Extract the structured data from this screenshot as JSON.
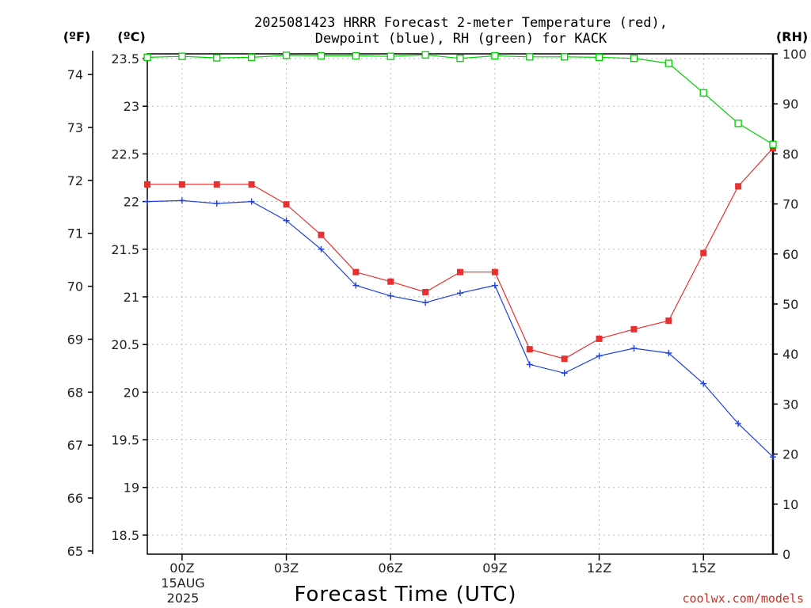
{
  "chart_data": {
    "type": "line",
    "title_line1": "2025081423 HRRR Forecast 2-meter Temperature (red),",
    "title_line2": "Dewpoint (blue), RH (green) for KACK",
    "xlabel": "Forecast Time (UTC)",
    "credit": "coolwx.com/models",
    "units": {
      "fahrenheit": "(ºF)",
      "celsius": "(ºC)",
      "rh": "(RH)"
    },
    "date_label": [
      "15AUG",
      "2025"
    ],
    "x_range_hours": [
      -1,
      17
    ],
    "x_ticks": [
      {
        "hour": 0,
        "label": "00Z"
      },
      {
        "hour": 3,
        "label": "03Z"
      },
      {
        "hour": 6,
        "label": "06Z"
      },
      {
        "hour": 9,
        "label": "09Z"
      },
      {
        "hour": 12,
        "label": "12Z"
      },
      {
        "hour": 15,
        "label": "15Z"
      }
    ],
    "y_celsius_range": [
      18.3,
      23.55
    ],
    "y_celsius_ticks": [
      "18.5",
      "19",
      "19.5",
      "20",
      "20.5",
      "21",
      "21.5",
      "22",
      "22.5",
      "23",
      "23.5"
    ],
    "y_fahrenheit_ticks": [
      "65",
      "66",
      "67",
      "68",
      "69",
      "70",
      "71",
      "72",
      "73",
      "74"
    ],
    "y_rh_range": [
      0,
      100
    ],
    "y_rh_ticks": [
      "0",
      "10",
      "20",
      "30",
      "40",
      "50",
      "60",
      "70",
      "80",
      "90",
      "100"
    ],
    "grid": true,
    "colors": {
      "temperature": "#e83030",
      "dewpoint": "#2040e0",
      "rh": "#00d000",
      "grid": "#bbbbbb",
      "axis": "#000000"
    },
    "hours": [
      -1,
      0,
      1,
      2,
      3,
      4,
      5,
      6,
      7,
      8,
      9,
      10,
      11,
      12,
      13,
      14,
      15,
      16,
      17
    ],
    "series": [
      {
        "name": "Temperature",
        "unit": "C",
        "axis": "celsius",
        "marker": "square",
        "values": [
          22.18,
          22.18,
          22.18,
          22.18,
          21.97,
          21.65,
          21.26,
          21.16,
          21.05,
          21.26,
          21.26,
          20.45,
          20.35,
          20.56,
          20.66,
          20.75,
          21.46,
          22.16,
          22.56
        ]
      },
      {
        "name": "Dewpoint",
        "unit": "C",
        "axis": "celsius",
        "marker": "plus",
        "values": [
          22.0,
          22.01,
          21.98,
          22.0,
          21.8,
          21.5,
          21.12,
          21.01,
          20.94,
          21.04,
          21.12,
          20.29,
          20.2,
          20.38,
          20.46,
          20.41,
          20.09,
          19.67,
          19.32
        ]
      },
      {
        "name": "Relative Humidity",
        "unit": "%",
        "axis": "rh",
        "marker": "open-square",
        "values": [
          99.3,
          99.5,
          99.2,
          99.3,
          99.7,
          99.6,
          99.6,
          99.5,
          99.8,
          99.1,
          99.6,
          99.4,
          99.4,
          99.3,
          99.1,
          98.1,
          92.2,
          86.1,
          81.9
        ]
      }
    ]
  }
}
